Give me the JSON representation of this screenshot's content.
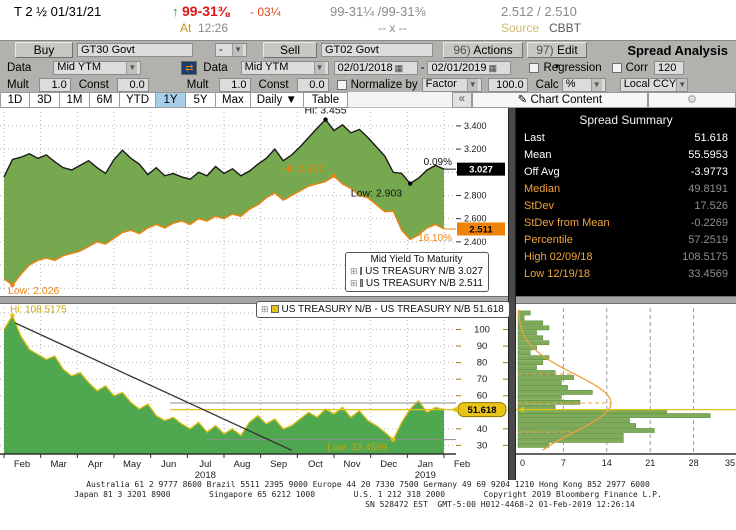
{
  "quote_bar": {
    "security": "T 2 ½ 01/31/21",
    "up_arrow": "↑",
    "price": "99-31⅜",
    "change": "- 03¼",
    "bid_ask": "99-31¼ /99-31⅜",
    "yield_bid_ask": "2.512 / 2.510",
    "at_label": "At",
    "time": "12:26",
    "size": "-- x --",
    "source_label": "Source",
    "source": "CBBT"
  },
  "toolbar": {
    "buy_label": "Buy",
    "buy_security": "GT30 Govt",
    "operator": "-",
    "sell_label": "Sell",
    "sell_security": "GT02 Govt",
    "actions_prefix": "96)",
    "actions_label": "Actions",
    "edit_prefix": "97)",
    "edit_label": "Edit",
    "title": "Spread Analysis",
    "data_label": "Data",
    "buy_data_type": "Mid YTM",
    "sell_data_type": "Mid YTM",
    "date_from": "02/01/2018",
    "date_to": "02/01/2019",
    "regression_label": "Regression",
    "corr_label": "Corr",
    "corr_value": "120",
    "mult_label": "Mult",
    "const_label": "Const",
    "buy_mult": "1.0",
    "buy_const": "0.0",
    "sell_mult": "1.0",
    "sell_const": "0.0",
    "normalize_label": "Normalize by",
    "normalize_type": "Factor",
    "normalize_value": "100.0",
    "calc_label": "Calc",
    "calc_type": "%",
    "currency": "Local CCY"
  },
  "tabs": {
    "periods": [
      "1D",
      "3D",
      "1M",
      "6M",
      "YTD",
      "1Y",
      "5Y",
      "Max"
    ],
    "selected": "1Y",
    "frequency": "Daily ▼",
    "table_label": "Table",
    "collapse_label": "«",
    "chart_content_label": "✎ Chart Content",
    "gear_label": "⚙"
  },
  "spread_summary": {
    "title": "Spread Summary",
    "rows": [
      {
        "label": "Last",
        "value": "51.618",
        "dim": false
      },
      {
        "label": "Mean",
        "value": "55.5953",
        "dim": false
      },
      {
        "label": "Off Avg",
        "value": "-3.9773",
        "dim": false
      },
      {
        "label": "Median",
        "value": "49.8191",
        "dim": true
      },
      {
        "label": "StDev",
        "value": "17.526",
        "dim": true
      },
      {
        "label": "StDev from Mean",
        "value": "-0.2269",
        "dim": true
      },
      {
        "label": "Percentile",
        "value": "57.2519",
        "dim": true
      },
      {
        "label": "High 02/09/18",
        "value": "108.5175",
        "dim": true
      },
      {
        "label": "Low 12/19/18",
        "value": "33.4569",
        "dim": true
      }
    ]
  },
  "chart_data": [
    {
      "id": "yield-chart",
      "type": "area",
      "title": "Mid Yield To Maturity",
      "x_tick_labels": [
        "Feb",
        "Mar",
        "Apr",
        "May",
        "Jun",
        "Jul",
        "Aug",
        "Sep",
        "Oct",
        "Nov",
        "Dec",
        "Jan",
        "Feb"
      ],
      "ylim": [
        1.95,
        3.52
      ],
      "yticks": [
        3.4,
        3.2,
        3.0,
        2.8,
        2.6,
        2.4,
        2.2,
        2.0
      ],
      "fill_between_color": "#76a94f",
      "series": [
        {
          "name": "US TREASURY N/B",
          "color": "#1a1a1a",
          "last": 3.027,
          "last_label": "3.027",
          "pct_change_label": "0.09%",
          "hi_label": "Hi: 3.455",
          "hi_week": 38,
          "hi_value": 3.455,
          "low_label": "Low: 2.903",
          "low_week": 48,
          "low_value": 2.903,
          "values": [
            2.96,
            3.111,
            3.13,
            3.16,
            3.12,
            3.15,
            3.09,
            3.04,
            3.02,
            3.06,
            3.1,
            3.04,
            2.99,
            3.11,
            3.19,
            3.12,
            3.07,
            2.98,
            3.04,
            2.97,
            2.99,
            2.96,
            2.94,
            3.0,
            2.97,
            3.05,
            2.99,
            3.03,
            2.97,
            3.01,
            3.07,
            3.12,
            3.2,
            3.1,
            3.15,
            3.22,
            3.3,
            3.38,
            3.455,
            3.36,
            3.41,
            3.34,
            3.37,
            3.3,
            3.22,
            3.14,
            3.0,
            2.99,
            2.903,
            2.95,
            3.02,
            3.06,
            3.027
          ]
        },
        {
          "name": "US TREASURY N/B",
          "color": "#ef820d",
          "last": 2.511,
          "last_label": "2.511",
          "pct_change_label": "16.10%",
          "hi_label": "Hi: 2.967",
          "hi_week": 39,
          "hi_value": 2.967,
          "low_label": "Low: 2.026",
          "low_week": 1,
          "low_value": 2.026,
          "values": [
            2.08,
            2.026,
            2.12,
            2.2,
            2.24,
            2.26,
            2.24,
            2.28,
            2.3,
            2.32,
            2.36,
            2.4,
            2.38,
            2.43,
            2.48,
            2.5,
            2.47,
            2.52,
            2.55,
            2.52,
            2.56,
            2.58,
            2.55,
            2.6,
            2.58,
            2.62,
            2.6,
            2.64,
            2.62,
            2.68,
            2.72,
            2.78,
            2.82,
            2.76,
            2.8,
            2.84,
            2.88,
            2.9,
            2.92,
            2.967,
            2.9,
            2.86,
            2.8,
            2.78,
            2.72,
            2.66,
            2.665,
            2.5,
            2.42,
            2.46,
            2.52,
            2.55,
            2.511
          ]
        }
      ],
      "legend": {
        "title": "Mid Yield To Maturity",
        "entries": [
          {
            "swatch": "#000000",
            "label": "US TREASURY N/B 3.027"
          },
          {
            "swatch": "#ef820d",
            "label": "US TREASURY N/B 2.511"
          }
        ]
      }
    },
    {
      "id": "spread-chart",
      "type": "area",
      "legend_label": "US TREASURY N/B - US TREASURY N/B 51.618",
      "x_tick_labels": [
        "Feb",
        "Mar",
        "Apr",
        "May",
        "Jun",
        "Jul",
        "Aug",
        "Sep",
        "Oct",
        "Nov",
        "Dec",
        "Jan",
        "Feb"
      ],
      "year_labels": [
        {
          "month_index": 5,
          "label": "2018"
        },
        {
          "month_index": 11,
          "label": "2019"
        }
      ],
      "ylim": [
        26,
        113
      ],
      "yticks": [
        110,
        100,
        90,
        80,
        70,
        60,
        40,
        30
      ],
      "last": 51.618,
      "last_label": "51.618",
      "mean": 55.5953,
      "low": 33.4569,
      "hi_label": "Hi: 108.5175",
      "hi_week": 1,
      "hi_value": 108.5175,
      "low_label": "Low: 33.4569",
      "low_week": 46,
      "low_value": 33.4569,
      "line_color": "#e3c117",
      "fill_color": "#4fa750",
      "trendline": {
        "from_week": 1.3,
        "from_value": 104,
        "to_week": 34,
        "to_value": 27
      },
      "values": [
        100,
        108.5,
        96,
        88,
        85,
        82,
        84,
        76,
        72,
        74,
        68,
        63,
        66,
        60,
        62,
        56,
        52,
        55,
        48,
        45,
        47,
        43,
        40,
        44,
        38,
        42,
        37,
        40,
        36,
        44,
        48,
        43,
        46,
        40,
        42,
        46,
        50,
        47,
        52,
        49,
        53,
        47,
        51,
        45,
        42,
        38,
        33.46,
        44,
        52,
        57,
        50,
        53,
        51.618
      ]
    },
    {
      "id": "distribution-histogram",
      "type": "bar",
      "orientation": "horizontal",
      "xticks": [
        0,
        7,
        14,
        21,
        28,
        35
      ],
      "bar_color": "#7dab57",
      "curve_color": "#f0a03c",
      "bin_centers": [
        110,
        107,
        104,
        101,
        98,
        95,
        92,
        89,
        86,
        83,
        80,
        77,
        74,
        71,
        68,
        65,
        62,
        59,
        56,
        53,
        50.5,
        48,
        45,
        42,
        39,
        36,
        33,
        30
      ],
      "bin_values": [
        2,
        1,
        4,
        5,
        3,
        4,
        5,
        3,
        2,
        5,
        4,
        3,
        6,
        9,
        7,
        8,
        12,
        7,
        10,
        6,
        24,
        31,
        18,
        19,
        22,
        17,
        17,
        5
      ],
      "normal_curve": {
        "mean": 55.5953,
        "stdev": 17.526,
        "peak": 15
      },
      "last_line": 51.618
    }
  ],
  "footer": {
    "line1": "Australia 61 2 9777 8600 Brazil 5511 2395 9000 Europe 44 20 7330 7500 Germany 49 69 9204 1210 Hong Kong 852 2977 6000",
    "line2": "Japan 81 3 3201 8900        Singapore 65 6212 1000        U.S. 1 212 318 2000        Copyright 2019 Bloomberg Finance L.P.",
    "line3": "SN 528472 EST  GMT-5:00 H012-4468-2 01-Feb-2019 12:26:14"
  },
  "colors": {
    "price_red": "#e01313",
    "amber": "#c98f1c",
    "orange_series": "#ef820d",
    "gold": "#e3c117",
    "green_fill_top": "#76a94f",
    "green_fill_bottom": "#4fa750",
    "selected_tab": "#a8cfe9",
    "summary_label_orange": "#f1a33c"
  }
}
